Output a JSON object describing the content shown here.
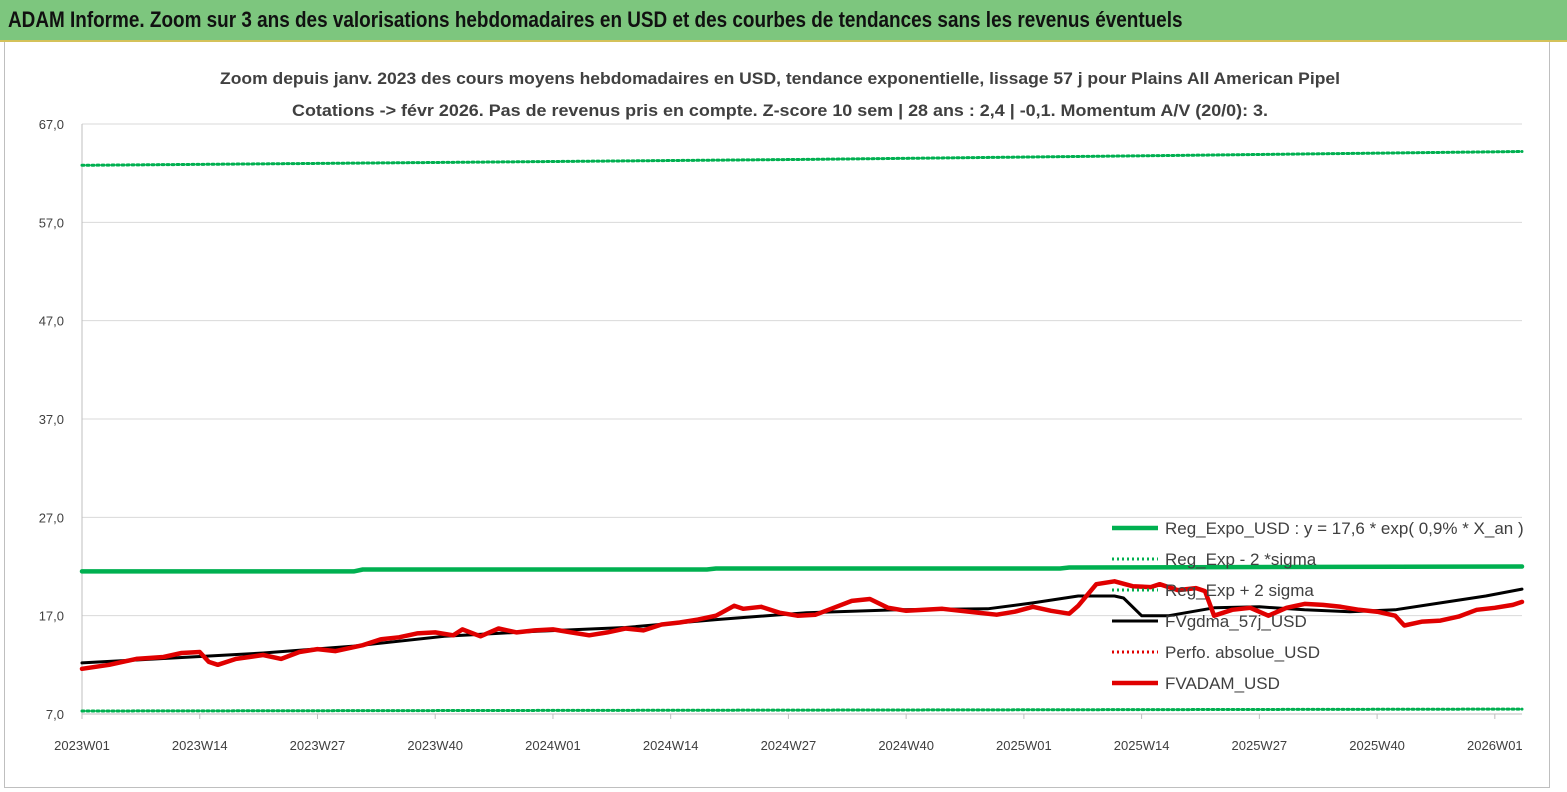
{
  "banner": {
    "title": "ADAM Informe. Zoom sur 3 ans des valorisations hebdomadaires en USD et des courbes de tendances sans les revenus éventuels"
  },
  "colors": {
    "banner_bg": "#7dc67e",
    "trend_green": "#00b050",
    "band_green": "#00b050",
    "smooth_black": "#000000",
    "price_red": "#e00000",
    "perf_red": "#e00000",
    "grid": "#d9d9d9"
  },
  "chart_data": {
    "type": "line",
    "title_line1": "Zoom depuis janv. 2023 des cours moyens hebdomadaires en USD, tendance exponentielle, lissage 57 j pour Plains All American Pipel",
    "title_line2": "Cotations -> févr 2026. Pas de revenus pris en compte. Z-score 10 sem | 28 ans : 2,4 | -0,1. Momentum A/V (20/0): 3.",
    "x_ticks": [
      "2023W01",
      "2023W14",
      "2023W27",
      "2023W40",
      "2024W01",
      "2024W14",
      "2024W27",
      "2024W40",
      "2025W01",
      "2025W14",
      "2025W27",
      "2025W40",
      "2026W01"
    ],
    "y_ticks": [
      "67,0",
      "57,0",
      "47,0",
      "37,0",
      "27,0",
      "17,0",
      "7,0"
    ],
    "ylim": [
      7,
      67
    ],
    "n_weeks": 160,
    "legend_position": "right",
    "legend": [
      {
        "label": "Reg_Expo_USD : y = 17,6 * exp( 0,9% *  X_an )",
        "style": "solid-thick",
        "color": "#00b050"
      },
      {
        "label": "Reg_Exp - 2 *sigma",
        "style": "dotted",
        "color": "#00b050"
      },
      {
        "label": "Reg_Exp + 2 sigma",
        "style": "dotted",
        "color": "#00b050"
      },
      {
        "label": "FVgdma_57j_USD",
        "style": "solid",
        "color": "#000000"
      },
      {
        "label": "Perfo. absolue_USD",
        "style": "dotted",
        "color": "#e00000"
      },
      {
        "label": "FVADAM_USD",
        "style": "solid-thick",
        "color": "#e00000"
      }
    ],
    "series": [
      {
        "name": "Reg_Expo_USD : y = 17,6 * exp( 0,9% *  X_an )",
        "points": [
          [
            0,
            21.5
          ],
          [
            30,
            21.5
          ],
          [
            31,
            21.7
          ],
          [
            69,
            21.7
          ],
          [
            70,
            21.8
          ],
          [
            108,
            21.8
          ],
          [
            109,
            21.9
          ],
          [
            159,
            22.0
          ]
        ]
      },
      {
        "name": "Reg_Exp + 2 sigma",
        "points": [
          [
            0,
            62.8
          ],
          [
            40,
            63.1
          ],
          [
            80,
            63.4
          ],
          [
            120,
            63.8
          ],
          [
            159,
            64.2
          ]
        ]
      },
      {
        "name": "Reg_Exp - 2 *sigma",
        "points": [
          [
            0,
            7.3
          ],
          [
            80,
            7.4
          ],
          [
            159,
            7.5
          ]
        ]
      },
      {
        "name": "FVgdma_57j_USD",
        "points": [
          [
            0,
            12.2
          ],
          [
            10,
            12.7
          ],
          [
            20,
            13.2
          ],
          [
            30,
            13.9
          ],
          [
            40,
            14.9
          ],
          [
            50,
            15.4
          ],
          [
            60,
            15.8
          ],
          [
            70,
            16.6
          ],
          [
            80,
            17.3
          ],
          [
            90,
            17.6
          ],
          [
            100,
            17.7
          ],
          [
            105,
            18.3
          ],
          [
            110,
            19.0
          ],
          [
            114,
            19.0
          ],
          [
            115,
            18.8
          ],
          [
            117,
            17.0
          ],
          [
            120,
            17.0
          ],
          [
            125,
            17.8
          ],
          [
            130,
            17.9
          ],
          [
            135,
            17.6
          ],
          [
            140,
            17.4
          ],
          [
            145,
            17.6
          ],
          [
            150,
            18.3
          ],
          [
            155,
            19.0
          ],
          [
            159,
            19.7
          ]
        ]
      },
      {
        "name": "FVADAM_USD",
        "points": [
          [
            0,
            11.6
          ],
          [
            3,
            12.0
          ],
          [
            6,
            12.6
          ],
          [
            9,
            12.8
          ],
          [
            11,
            13.2
          ],
          [
            13,
            13.3
          ],
          [
            14,
            12.3
          ],
          [
            15,
            12.0
          ],
          [
            17,
            12.6
          ],
          [
            20,
            13.0
          ],
          [
            22,
            12.6
          ],
          [
            24,
            13.3
          ],
          [
            26,
            13.6
          ],
          [
            28,
            13.4
          ],
          [
            31,
            14.0
          ],
          [
            33,
            14.6
          ],
          [
            35,
            14.8
          ],
          [
            37,
            15.2
          ],
          [
            39,
            15.3
          ],
          [
            41,
            15.0
          ],
          [
            42,
            15.6
          ],
          [
            44,
            14.9
          ],
          [
            46,
            15.7
          ],
          [
            48,
            15.3
          ],
          [
            50,
            15.5
          ],
          [
            52,
            15.6
          ],
          [
            54,
            15.3
          ],
          [
            56,
            15.0
          ],
          [
            58,
            15.3
          ],
          [
            60,
            15.7
          ],
          [
            62,
            15.5
          ],
          [
            64,
            16.1
          ],
          [
            66,
            16.3
          ],
          [
            68,
            16.6
          ],
          [
            70,
            17.0
          ],
          [
            71,
            17.5
          ],
          [
            72,
            18.0
          ],
          [
            73,
            17.7
          ],
          [
            75,
            17.9
          ],
          [
            77,
            17.3
          ],
          [
            79,
            17.0
          ],
          [
            81,
            17.1
          ],
          [
            83,
            17.8
          ],
          [
            85,
            18.5
          ],
          [
            87,
            18.7
          ],
          [
            89,
            17.8
          ],
          [
            91,
            17.5
          ],
          [
            93,
            17.6
          ],
          [
            95,
            17.7
          ],
          [
            97,
            17.5
          ],
          [
            99,
            17.3
          ],
          [
            101,
            17.1
          ],
          [
            103,
            17.4
          ],
          [
            105,
            17.9
          ],
          [
            107,
            17.5
          ],
          [
            109,
            17.2
          ],
          [
            110,
            18.0
          ],
          [
            112,
            20.2
          ],
          [
            114,
            20.5
          ],
          [
            116,
            20.0
          ],
          [
            118,
            19.9
          ],
          [
            119,
            20.2
          ],
          [
            121,
            19.6
          ],
          [
            123,
            19.8
          ],
          [
            124,
            19.5
          ],
          [
            125,
            17.0
          ],
          [
            127,
            17.6
          ],
          [
            129,
            17.8
          ],
          [
            131,
            17.0
          ],
          [
            133,
            17.8
          ],
          [
            135,
            18.2
          ],
          [
            137,
            18.1
          ],
          [
            139,
            17.9
          ],
          [
            141,
            17.6
          ],
          [
            143,
            17.4
          ],
          [
            145,
            17.0
          ],
          [
            146,
            16.0
          ],
          [
            148,
            16.4
          ],
          [
            150,
            16.5
          ],
          [
            152,
            16.9
          ],
          [
            154,
            17.6
          ],
          [
            156,
            17.8
          ],
          [
            158,
            18.1
          ],
          [
            159,
            18.4
          ]
        ]
      }
    ]
  }
}
